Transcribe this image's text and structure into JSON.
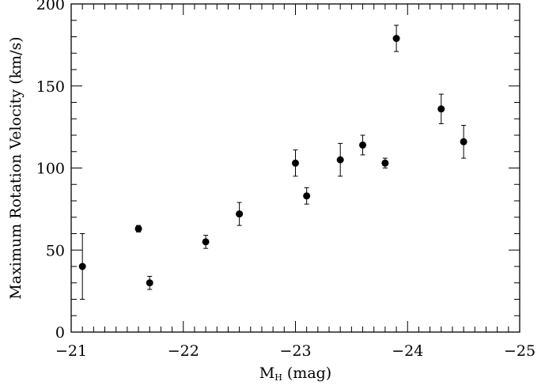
{
  "chart_data": {
    "type": "scatter",
    "xlabel": "M",
    "xlabel_subscript": "H",
    "xlabel_unit": " (mag)",
    "ylabel": "Maximum Rotation Velocity (km/s)",
    "xlim": [
      -21,
      -25
    ],
    "ylim": [
      0,
      200
    ],
    "x_ticks": [
      -21,
      -22,
      -23,
      -24,
      -25
    ],
    "x_tick_labels": [
      "−21",
      "−22",
      "−23",
      "−24",
      "−25"
    ],
    "y_ticks": [
      0,
      50,
      100,
      150,
      200
    ],
    "y_tick_labels": [
      "0",
      "50",
      "100",
      "150",
      "200"
    ],
    "grid": false,
    "points": [
      {
        "x": -21.1,
        "y": 40,
        "err_lo": 20,
        "err_hi": 20
      },
      {
        "x": -21.6,
        "y": 63,
        "err_lo": 2,
        "err_hi": 2
      },
      {
        "x": -21.7,
        "y": 30,
        "err_lo": 4,
        "err_hi": 4
      },
      {
        "x": -22.2,
        "y": 55,
        "err_lo": 4,
        "err_hi": 4
      },
      {
        "x": -22.5,
        "y": 72,
        "err_lo": 7,
        "err_hi": 7
      },
      {
        "x": -23.0,
        "y": 103,
        "err_lo": 8,
        "err_hi": 8
      },
      {
        "x": -23.1,
        "y": 83,
        "err_lo": 5,
        "err_hi": 5
      },
      {
        "x": -23.4,
        "y": 105,
        "err_lo": 10,
        "err_hi": 10
      },
      {
        "x": -23.6,
        "y": 114,
        "err_lo": 6,
        "err_hi": 6
      },
      {
        "x": -23.8,
        "y": 103,
        "err_lo": 3,
        "err_hi": 3
      },
      {
        "x": -23.9,
        "y": 179,
        "err_lo": 8,
        "err_hi": 8
      },
      {
        "x": -24.3,
        "y": 136,
        "err_lo": 9,
        "err_hi": 9
      },
      {
        "x": -24.5,
        "y": 116,
        "err_lo": 10,
        "err_hi": 10
      }
    ]
  }
}
